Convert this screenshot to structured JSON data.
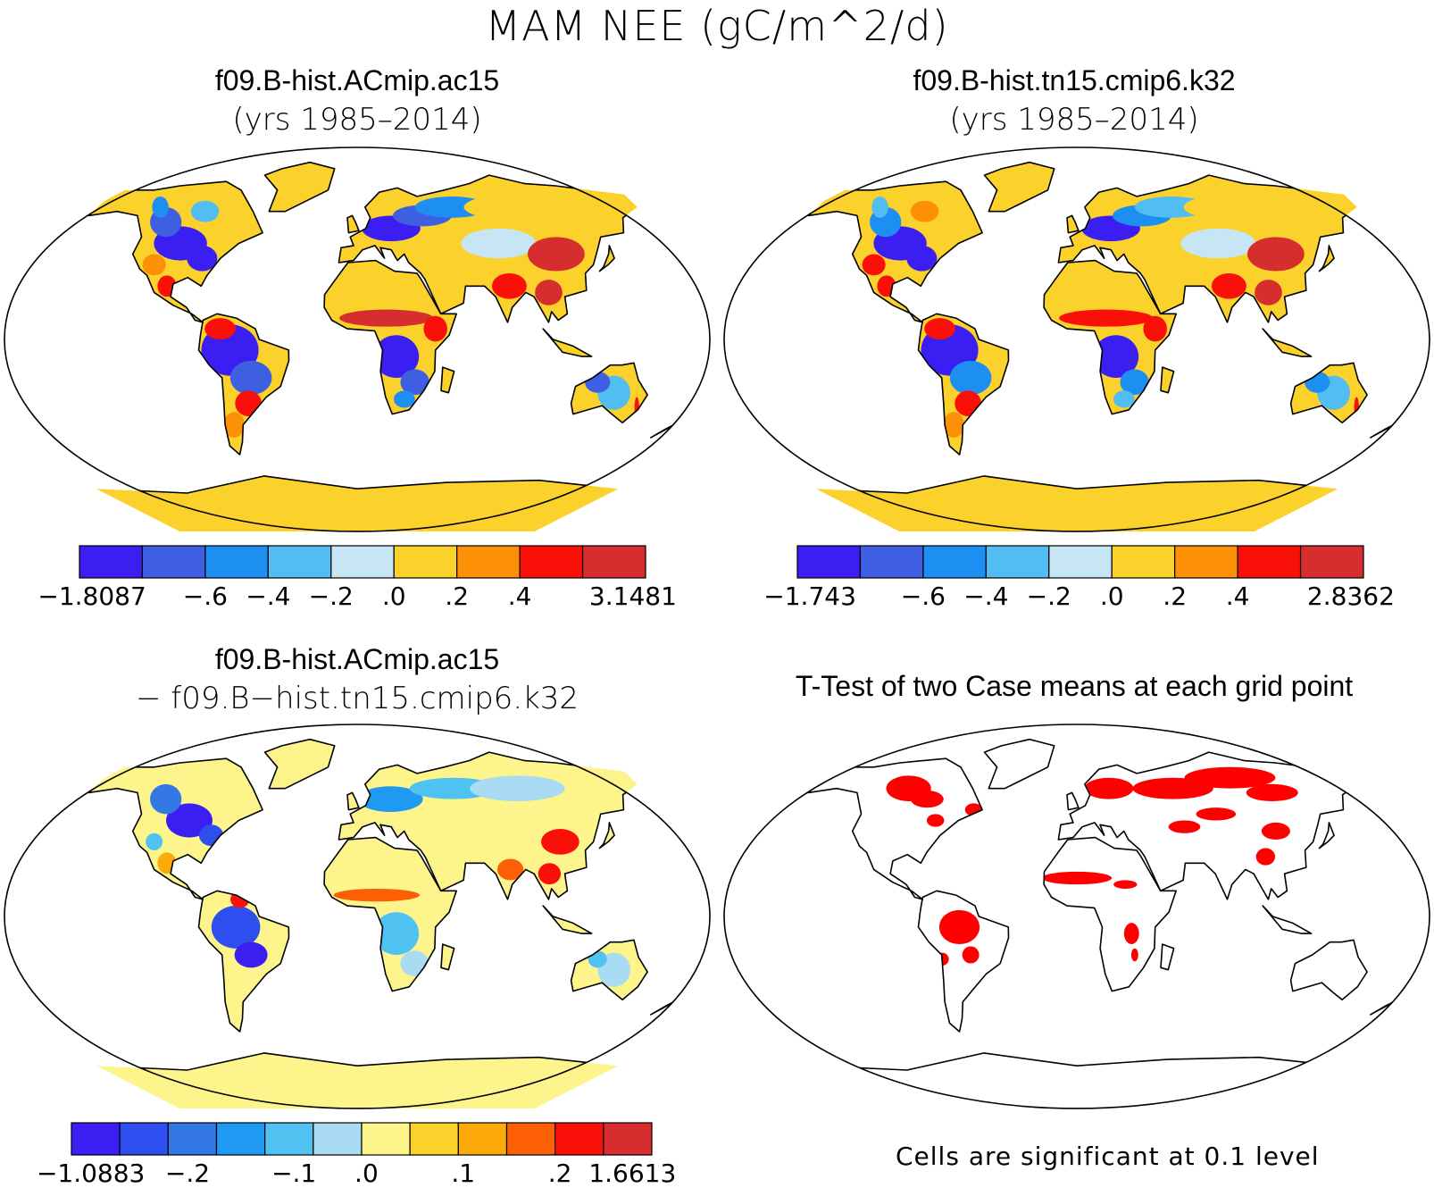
{
  "main_title": "MAM NEE (gC/m^2/d)",
  "chart_data": [
    {
      "type": "heatmap",
      "title": "f09.B-hist.ACmip.ac15",
      "subtitle": "(yrs 1985–2014)",
      "colorbar": {
        "labels": [
          "−1.8087",
          "−.6",
          "−.4",
          "−.2",
          ".0",
          ".2",
          ".4",
          "3.1481"
        ],
        "colors": [
          "#3a1ef2",
          "#3f5fe3",
          "#1e8ff2",
          "#52bdf2",
          "#c6e6f6",
          "#fbd12b",
          "#fc9006",
          "#f91109",
          "#d62e2e"
        ]
      }
    },
    {
      "type": "heatmap",
      "title": "f09.B-hist.tn15.cmip6.k32",
      "subtitle": "(yrs 1985–2014)",
      "colorbar": {
        "labels": [
          "−1.743",
          "−.6",
          "−.4",
          "−.2",
          ".0",
          ".2",
          ".4",
          "2.8362"
        ],
        "colors": [
          "#3a1ef2",
          "#3f5fe3",
          "#1e8ff2",
          "#52bdf2",
          "#c6e6f6",
          "#fbd12b",
          "#fc9006",
          "#f91109",
          "#d62e2e"
        ]
      }
    },
    {
      "type": "heatmap",
      "title": "f09.B-hist.ACmip.ac15",
      "subtitle": "− f09.B−hist.tn15.cmip6.k32",
      "colorbar": {
        "labels": [
          "−1.0883",
          "−.2",
          "−.1",
          ".0",
          ".1",
          ".2",
          "1.6613"
        ],
        "colors": [
          "#3a1ef2",
          "#2f4ef0",
          "#3478e6",
          "#1e9af2",
          "#4fc2f2",
          "#a9dbf2",
          "#fdf58c",
          "#fbd12b",
          "#fca90a",
          "#fc5f06",
          "#f91109",
          "#d62e2e"
        ]
      }
    },
    {
      "type": "heatmap",
      "title": "T-Test of two Case means at each grid point",
      "note": "Cells are significant at 0.1 level",
      "significant_color": "#ff0000"
    }
  ]
}
